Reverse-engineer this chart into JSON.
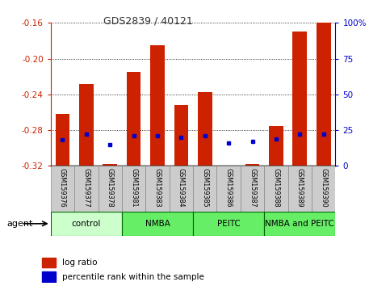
{
  "title": "GDS2839 / 40121",
  "categories": [
    "GSM159376",
    "GSM159377",
    "GSM159378",
    "GSM159381",
    "GSM159383",
    "GSM159384",
    "GSM159385",
    "GSM159386",
    "GSM159387",
    "GSM159388",
    "GSM159389",
    "GSM159390"
  ],
  "log_ratios": [
    -0.262,
    -0.228,
    -0.318,
    -0.215,
    -0.185,
    -0.252,
    -0.237,
    -0.32,
    -0.318,
    -0.275,
    -0.17,
    -0.16
  ],
  "percentile_ranks": [
    18,
    22,
    15,
    21,
    21,
    20,
    21,
    16,
    17,
    19,
    22,
    22
  ],
  "ylim_left": [
    -0.32,
    -0.16
  ],
  "ylim_right": [
    0,
    100
  ],
  "yticks_left": [
    -0.32,
    -0.28,
    -0.24,
    -0.2,
    -0.16
  ],
  "yticks_right": [
    0,
    25,
    50,
    75,
    100
  ],
  "bar_color": "#cc2200",
  "dot_color": "#0000cc",
  "left_axis_color": "#cc2200",
  "right_axis_color": "#0000cc",
  "group_boundaries": [
    {
      "label": "control",
      "color": "#ccffcc",
      "start": 0,
      "end": 3
    },
    {
      "label": "NMBA",
      "color": "#66ee66",
      "start": 3,
      "end": 6
    },
    {
      "label": "PEITC",
      "color": "#66ee66",
      "start": 6,
      "end": 9
    },
    {
      "label": "NMBA and PEITC",
      "color": "#66ee66",
      "start": 9,
      "end": 12
    }
  ],
  "legend": [
    "log ratio",
    "percentile rank within the sample"
  ],
  "agent_label": "agent"
}
